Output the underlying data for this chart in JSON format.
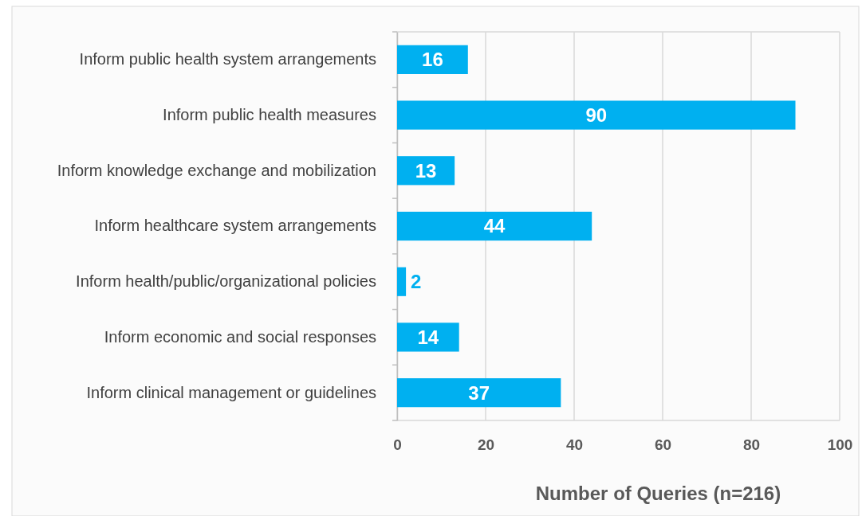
{
  "chart_data": {
    "type": "bar",
    "orientation": "horizontal",
    "categories": [
      "Inform public health system arrangements",
      "Inform public health measures",
      "Inform knowledge exchange and mobilization",
      "Inform healthcare system arrangements",
      "Inform health/public/organizational policies",
      "Inform economic and social responses",
      "Inform clinical management or guidelines"
    ],
    "values": [
      16,
      90,
      13,
      44,
      2,
      14,
      37
    ],
    "color": "#00b0f0",
    "data_labels": true,
    "xlim": [
      0,
      100
    ],
    "xticks": [
      0,
      20,
      40,
      60,
      80,
      100
    ],
    "grid": "x",
    "xlabel": "Number of Queries (n=216)"
  }
}
